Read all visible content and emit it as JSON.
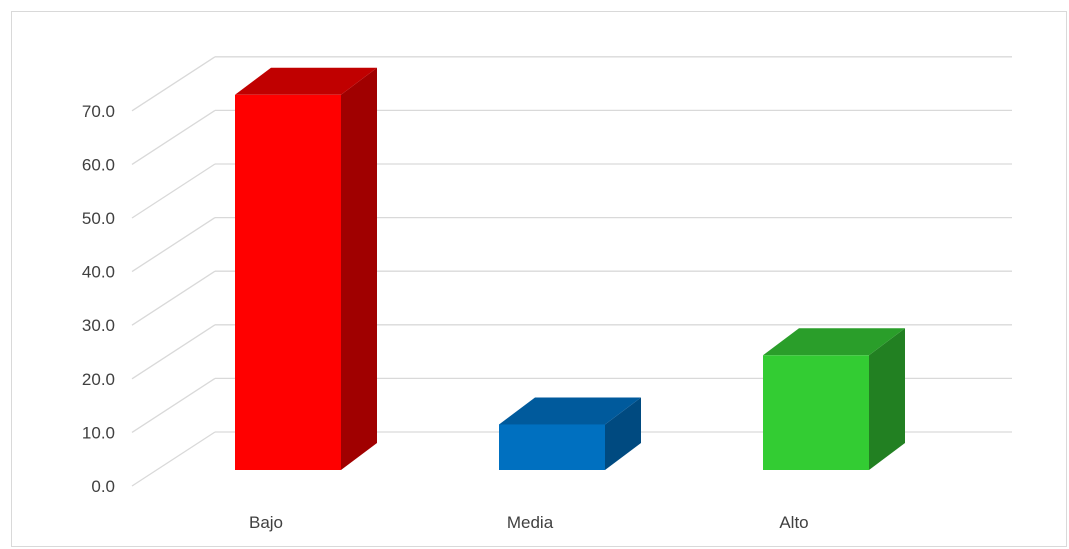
{
  "chart_data": {
    "type": "bar",
    "style": "3d-column",
    "categories": [
      "Bajo",
      "Media",
      "Alto"
    ],
    "values": [
      70.0,
      8.5,
      21.4
    ],
    "colors": [
      "#ff0000",
      "#0070c0",
      "#33cc33"
    ],
    "side_colors": [
      "#a00000",
      "#004a80",
      "#228022"
    ],
    "top_colors": [
      "#c00000",
      "#005a9c",
      "#2a9e2a"
    ],
    "ylim": [
      0,
      70
    ],
    "yticks": [
      "0.0",
      "10.0",
      "20.0",
      "30.0",
      "40.0",
      "50.0",
      "60.0",
      "70.0"
    ],
    "grid": true,
    "legend": "none"
  }
}
